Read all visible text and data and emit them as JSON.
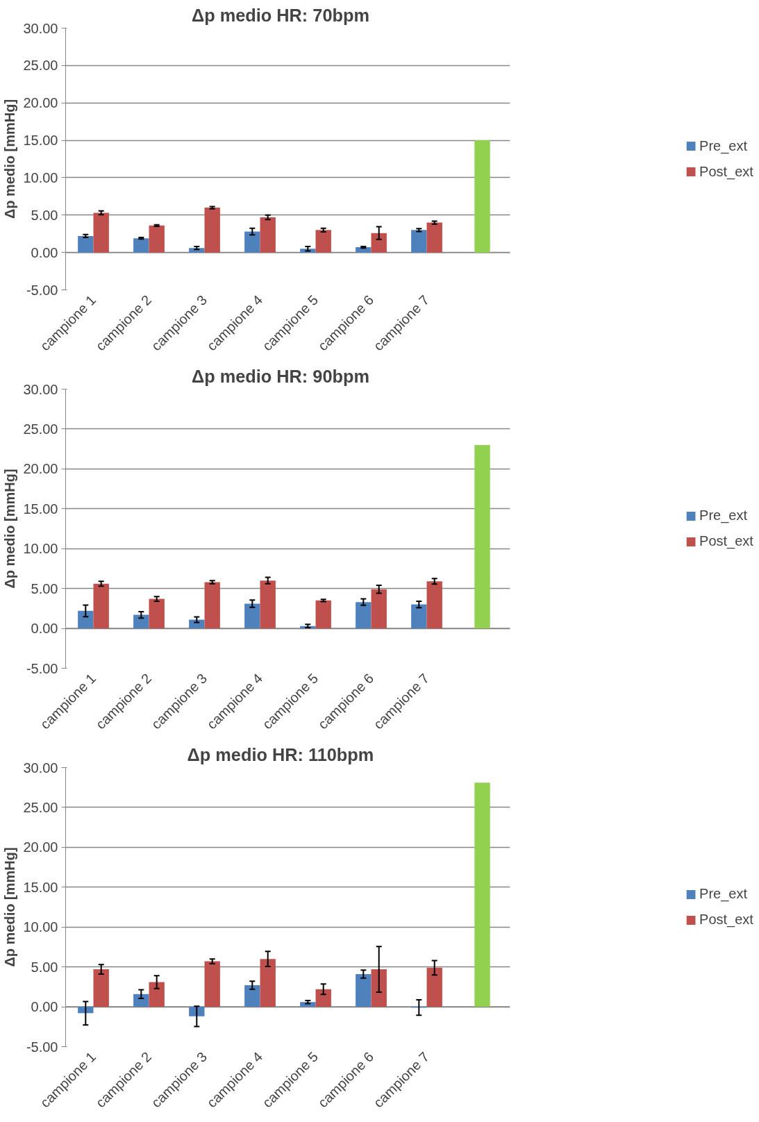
{
  "chart_data": [
    {
      "type": "bar",
      "title": "Δp medio    HR: 70bpm",
      "ylabel": "Δp medio [mmHg]",
      "categories": [
        "campione 1",
        "campione 2",
        "campione 3",
        "campione 4",
        "campione 5",
        "campione 6",
        "campione 7",
        null
      ],
      "series": [
        {
          "name": "Pre_ext",
          "color": "#4f81bd",
          "values": [
            2.2,
            1.9,
            0.6,
            2.8,
            0.5,
            0.7,
            3.0,
            null
          ],
          "errors": [
            0.2,
            0.1,
            0.2,
            0.45,
            0.3,
            0.1,
            0.2,
            null
          ]
        },
        {
          "name": "Post_ext",
          "color": "#c0504d",
          "values": [
            5.3,
            3.6,
            6.0,
            4.7,
            3.0,
            2.6,
            4.0,
            null
          ],
          "errors": [
            0.25,
            0.1,
            0.15,
            0.3,
            0.25,
            0.85,
            0.2,
            null
          ]
        },
        {
          "color": "#92d050",
          "values": [
            null,
            null,
            null,
            null,
            null,
            null,
            null,
            15.0
          ]
        }
      ],
      "ylim": [
        -5,
        30
      ],
      "yticks": [
        {
          "value": -5,
          "label": "-5.00"
        },
        {
          "value": 0,
          "label": "0.00"
        },
        {
          "value": 5,
          "label": "5.00"
        },
        {
          "value": 10,
          "label": "10.00"
        },
        {
          "value": 15,
          "label": "15.00"
        },
        {
          "value": 20,
          "label": "20.00"
        },
        {
          "value": 25,
          "label": "25.00"
        },
        {
          "value": 30,
          "label": "30.00"
        }
      ],
      "grid": "y",
      "legend": "right"
    },
    {
      "type": "bar",
      "title": "Δp medio    HR: 90bpm",
      "ylabel": "Δp medio [mmHg]",
      "categories": [
        "campione 1",
        "campione 2",
        "campione 3",
        "campione 4",
        "campione 5",
        "campione 6",
        "campione 7",
        null
      ],
      "series": [
        {
          "name": "Pre_ext",
          "color": "#4f81bd",
          "values": [
            2.2,
            1.7,
            1.1,
            3.1,
            0.3,
            3.3,
            3.0,
            null
          ],
          "errors": [
            0.73,
            0.4,
            0.35,
            0.45,
            0.2,
            0.4,
            0.4,
            null
          ]
        },
        {
          "name": "Post_ext",
          "color": "#c0504d",
          "values": [
            5.6,
            3.7,
            5.8,
            6.0,
            3.5,
            4.9,
            5.9,
            null
          ],
          "errors": [
            0.3,
            0.3,
            0.2,
            0.4,
            0.15,
            0.5,
            0.35,
            null
          ]
        },
        {
          "color": "#92d050",
          "values": [
            null,
            null,
            null,
            null,
            null,
            null,
            null,
            23.0
          ]
        }
      ],
      "ylim": [
        -5,
        30
      ],
      "yticks": [
        {
          "value": -5,
          "label": "-5.00"
        },
        {
          "value": 0,
          "label": "0.00"
        },
        {
          "value": 5,
          "label": "5.00"
        },
        {
          "value": 10,
          "label": "10.00"
        },
        {
          "value": 15,
          "label": "15.00"
        },
        {
          "value": 20,
          "label": "20.00"
        },
        {
          "value": 25,
          "label": "25.00"
        },
        {
          "value": 30,
          "label": "30.00"
        }
      ],
      "grid": "y",
      "legend": "right"
    },
    {
      "type": "bar",
      "title": "Δp medio    HR: 110bpm",
      "ylabel": "Δp medio [mmHg]",
      "categories": [
        "campione 1",
        "campione 2",
        "campione 3",
        "campione 4",
        "campione 5",
        "campione 6",
        "campione 7",
        null
      ],
      "series": [
        {
          "name": "Pre_ext",
          "color": "#4f81bd",
          "values": [
            -0.8,
            1.6,
            -1.2,
            2.7,
            0.6,
            4.1,
            -0.1,
            null
          ],
          "errors": [
            1.47,
            0.55,
            1.28,
            0.5,
            0.2,
            0.5,
            0.97,
            null
          ]
        },
        {
          "name": "Post_ext",
          "color": "#c0504d",
          "values": [
            4.7,
            3.1,
            5.7,
            6.0,
            2.2,
            4.7,
            4.9,
            null
          ],
          "errors": [
            0.6,
            0.8,
            0.3,
            0.95,
            0.65,
            2.86,
            0.9,
            null
          ]
        },
        {
          "color": "#92d050",
          "values": [
            null,
            null,
            null,
            null,
            null,
            null,
            null,
            28.1
          ]
        }
      ],
      "ylim": [
        -5,
        30
      ],
      "yticks": [
        {
          "value": -5,
          "label": "-5.00"
        },
        {
          "value": 0,
          "label": "0.00"
        },
        {
          "value": 5,
          "label": "5.00"
        },
        {
          "value": 10,
          "label": "10.00"
        },
        {
          "value": 15,
          "label": "15.00"
        },
        {
          "value": 20,
          "label": "20.00"
        },
        {
          "value": 25,
          "label": "25.00"
        },
        {
          "value": 30,
          "label": "30.00"
        }
      ],
      "grid": "y",
      "legend": "right"
    }
  ]
}
